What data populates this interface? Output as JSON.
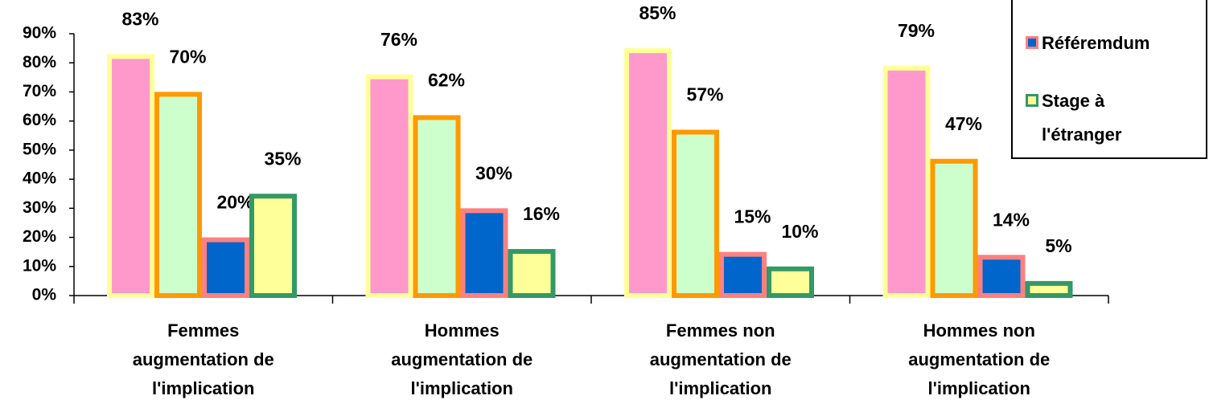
{
  "chart_data": {
    "type": "bar",
    "categories": [
      [
        "Femmes",
        "augmentation de",
        "l'implication"
      ],
      [
        "Hommes",
        "augmentation de",
        "l'implication"
      ],
      [
        "Femmes non",
        "augmentation de",
        "l'implication"
      ],
      [
        "Hommes non",
        "augmentation de",
        "l'implication"
      ]
    ],
    "series": [
      {
        "color": "#ff99cc",
        "border": "#ffff99",
        "values": [
          83,
          76,
          85,
          79
        ],
        "value_labels": [
          "83%",
          "76%",
          "85%",
          "79%"
        ]
      },
      {
        "color": "#ccffcc",
        "border": "#ff9900",
        "values": [
          70,
          62,
          57,
          47
        ],
        "value_labels": [
          "70%",
          "62%",
          "57%",
          "47%"
        ]
      },
      {
        "name": "Référemdum",
        "color": "#0066cc",
        "border": "#ff8080",
        "values": [
          20,
          30,
          15,
          14
        ],
        "value_labels": [
          "20%",
          "30%",
          "15%",
          "14%"
        ]
      },
      {
        "name": "Stage à l'étranger",
        "color": "#ffff99",
        "border": "#339966",
        "values": [
          35,
          16,
          10,
          5
        ],
        "value_labels": [
          "35%",
          "16%",
          "10%",
          "5%"
        ]
      }
    ],
    "ylim": [
      0,
      90
    ],
    "yticks": [
      {
        "value": 0,
        "label": "0%"
      },
      {
        "value": 10,
        "label": "10%"
      },
      {
        "value": 20,
        "label": "20%"
      },
      {
        "value": 30,
        "label": "30%"
      },
      {
        "value": 40,
        "label": "40%"
      },
      {
        "value": 50,
        "label": "50%"
      },
      {
        "value": 60,
        "label": "60%"
      },
      {
        "value": 70,
        "label": "70%"
      },
      {
        "value": 80,
        "label": "80%"
      },
      {
        "value": 90,
        "label": "90%"
      }
    ],
    "legend": "top-right"
  }
}
